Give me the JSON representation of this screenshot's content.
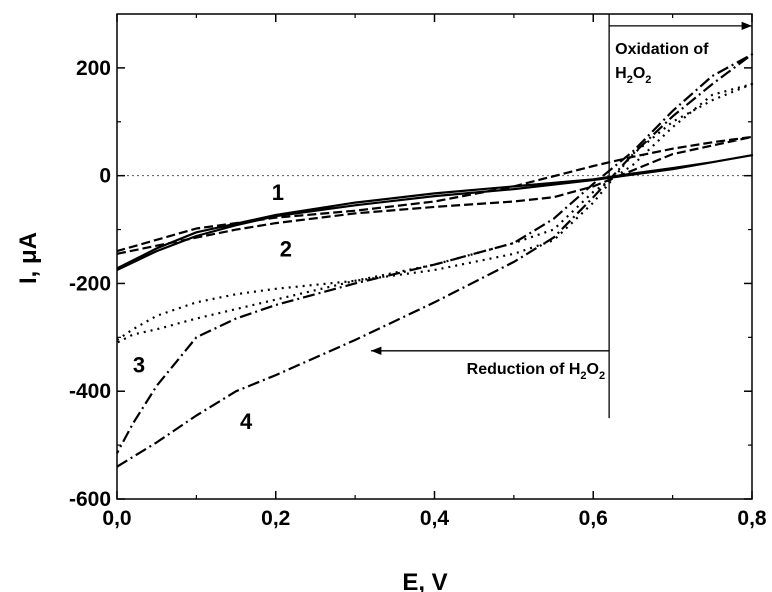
{
  "chart_data": {
    "type": "line",
    "xlabel": "E, V",
    "ylabel": "I, μA",
    "xlim": [
      0.0,
      0.8
    ],
    "ylim": [
      -600,
      300
    ],
    "x_ticks": [
      {
        "value": 0.0,
        "label": "0,0"
      },
      {
        "value": 0.2,
        "label": "0,2"
      },
      {
        "value": 0.4,
        "label": "0,4"
      },
      {
        "value": 0.6,
        "label": "0,6"
      },
      {
        "value": 0.8,
        "label": "0,8"
      }
    ],
    "y_ticks": [
      {
        "value": -600,
        "label": "-600"
      },
      {
        "value": -400,
        "label": "-400"
      },
      {
        "value": -200,
        "label": "-200"
      },
      {
        "value": 0,
        "label": "0"
      },
      {
        "value": 200,
        "label": "200"
      }
    ],
    "zero_line": true,
    "series": [
      {
        "label": "1",
        "style": "solid",
        "label_pos": [
          0.195,
          -45
        ],
        "x": [
          0.0,
          0.05,
          0.1,
          0.15,
          0.2,
          0.3,
          0.4,
          0.5,
          0.6,
          0.7,
          0.8,
          0.75,
          0.7,
          0.65,
          0.6,
          0.5,
          0.4,
          0.3,
          0.2,
          0.1,
          0.05,
          0.0
        ],
        "y": [
          -175,
          -140,
          -112,
          -92,
          -75,
          -55,
          -38,
          -25,
          -8,
          12,
          38,
          25,
          14,
          4,
          -7,
          -20,
          -33,
          -50,
          -73,
          -105,
          -135,
          -172
        ]
      },
      {
        "label": "2",
        "style": "dashed",
        "label_pos": [
          0.205,
          -150
        ],
        "x": [
          0.0,
          0.05,
          0.1,
          0.15,
          0.2,
          0.3,
          0.4,
          0.5,
          0.55,
          0.6,
          0.7,
          0.8,
          0.75,
          0.7,
          0.65,
          0.6,
          0.5,
          0.4,
          0.3,
          0.2,
          0.1,
          0.0
        ],
        "y": [
          -145,
          -130,
          -115,
          -100,
          -88,
          -70,
          -58,
          -48,
          -40,
          -20,
          40,
          72,
          62,
          50,
          35,
          18,
          -20,
          -48,
          -65,
          -78,
          -98,
          -140
        ]
      },
      {
        "label": "3",
        "style": "dotted",
        "label_pos": [
          0.02,
          -365
        ],
        "x": [
          0.0,
          0.02,
          0.05,
          0.1,
          0.15,
          0.2,
          0.3,
          0.4,
          0.5,
          0.55,
          0.6,
          0.65,
          0.7,
          0.75,
          0.8,
          0.75,
          0.7,
          0.65,
          0.6,
          0.55,
          0.5,
          0.4,
          0.3,
          0.2,
          0.1,
          0.05,
          0.02,
          0.0
        ],
        "y": [
          -305,
          -285,
          -260,
          -235,
          -220,
          -210,
          -195,
          -175,
          -145,
          -120,
          -50,
          40,
          100,
          140,
          170,
          150,
          90,
          20,
          -30,
          -100,
          -125,
          -165,
          -195,
          -230,
          -265,
          -285,
          -295,
          -310
        ]
      },
      {
        "label": "4",
        "style": "dashdot",
        "label_pos": [
          0.155,
          -470
        ],
        "x": [
          0.0,
          0.05,
          0.1,
          0.15,
          0.2,
          0.3,
          0.4,
          0.5,
          0.55,
          0.6,
          0.65,
          0.7,
          0.75,
          0.8,
          0.75,
          0.7,
          0.65,
          0.6,
          0.55,
          0.5,
          0.4,
          0.3,
          0.2,
          0.15,
          0.1,
          0.05,
          0.02,
          0.0
        ],
        "y": [
          -540,
          -495,
          -445,
          -400,
          -370,
          -305,
          -235,
          -160,
          -115,
          -40,
          40,
          110,
          170,
          225,
          185,
          120,
          45,
          -15,
          -80,
          -125,
          -165,
          -200,
          -240,
          -265,
          -300,
          -390,
          -460,
          -515
        ]
      }
    ],
    "annotations": [
      {
        "id": "oxidation",
        "lines": [
          "Oxidation of"
        ],
        "formula": [
          "H",
          "2",
          "O",
          "2"
        ],
        "arrow": "right",
        "x_start": 0.62,
        "x_end": 0.8,
        "y": 278
      },
      {
        "id": "reduction",
        "text": "Reduction of ",
        "formula": [
          "H",
          "2",
          "O",
          "2"
        ],
        "arrow": "left",
        "x_start": 0.62,
        "x_end": 0.32,
        "y": -325
      }
    ],
    "divider_x": 0.62
  }
}
